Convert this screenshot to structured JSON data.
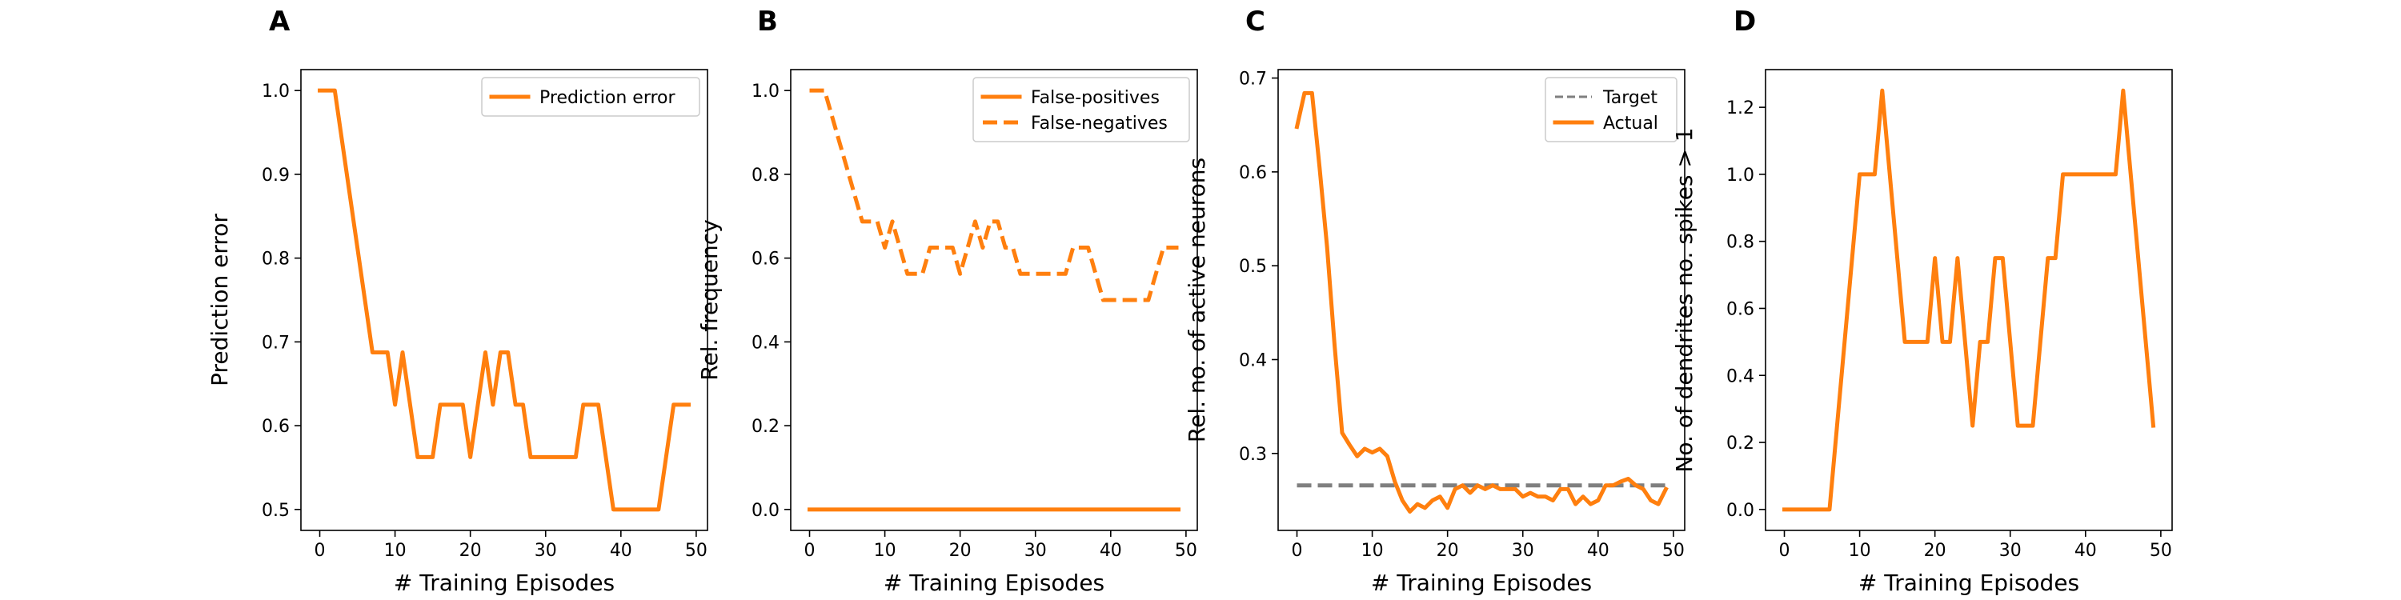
{
  "colors": {
    "series_orange": "#ff7f0e",
    "target_gray": "#7f7f7f",
    "axes": "#000000",
    "background": "#ffffff"
  },
  "chart_data": [
    {
      "panel": "A",
      "type": "line",
      "title": "",
      "xlabel": "# Training Episodes",
      "ylabel": "Prediction error",
      "xlim": [
        -2.5,
        51.5
      ],
      "ylim": [
        0.475,
        1.025
      ],
      "xticks": [
        0,
        10,
        20,
        30,
        40,
        50
      ],
      "xtick_labels": [
        "0",
        "10",
        "20",
        "30",
        "40",
        "50"
      ],
      "yticks": [
        0.5,
        0.6,
        0.7,
        0.8,
        0.9,
        1.0
      ],
      "ytick_labels": [
        "0.5",
        "0.6",
        "0.7",
        "0.8",
        "0.9",
        "1.0"
      ],
      "legend": {
        "position": "top-right"
      },
      "grid": false,
      "series": [
        {
          "name": "Prediction error",
          "style": "solid",
          "color": "#ff7f0e",
          "x": [
            0,
            1,
            2,
            3,
            4,
            5,
            6,
            7,
            8,
            9,
            10,
            11,
            12,
            13,
            14,
            15,
            16,
            17,
            18,
            19,
            20,
            21,
            22,
            23,
            24,
            25,
            26,
            27,
            28,
            29,
            30,
            31,
            32,
            33,
            34,
            35,
            36,
            37,
            38,
            39,
            40,
            41,
            42,
            43,
            44,
            45,
            46,
            47,
            48,
            49
          ],
          "values": [
            1.0,
            1.0,
            1.0,
            0.9375,
            0.875,
            0.8125,
            0.75,
            0.6875,
            0.6875,
            0.6875,
            0.625,
            0.6875,
            0.625,
            0.5625,
            0.5625,
            0.5625,
            0.625,
            0.625,
            0.625,
            0.625,
            0.5625,
            0.625,
            0.6875,
            0.625,
            0.6875,
            0.6875,
            0.625,
            0.625,
            0.5625,
            0.5625,
            0.5625,
            0.5625,
            0.5625,
            0.5625,
            0.5625,
            0.625,
            0.625,
            0.625,
            0.5625,
            0.5,
            0.5,
            0.5,
            0.5,
            0.5,
            0.5,
            0.5,
            0.5625,
            0.625,
            0.625,
            0.625
          ]
        }
      ]
    },
    {
      "panel": "B",
      "type": "line",
      "title": "",
      "xlabel": "# Training Episodes",
      "ylabel": "Rel. frequency",
      "xlim": [
        -2.5,
        51.5
      ],
      "ylim": [
        -0.05,
        1.05
      ],
      "xticks": [
        0,
        10,
        20,
        30,
        40,
        50
      ],
      "xtick_labels": [
        "0",
        "10",
        "20",
        "30",
        "40",
        "50"
      ],
      "yticks": [
        0.0,
        0.2,
        0.4,
        0.6,
        0.8,
        1.0
      ],
      "ytick_labels": [
        "0.0",
        "0.2",
        "0.4",
        "0.6",
        "0.8",
        "1.0"
      ],
      "legend": {
        "position": "top-right"
      },
      "grid": false,
      "series": [
        {
          "name": "False-positives",
          "style": "solid",
          "color": "#ff7f0e",
          "x": [
            0,
            1,
            2,
            3,
            4,
            5,
            6,
            7,
            8,
            9,
            10,
            11,
            12,
            13,
            14,
            15,
            16,
            17,
            18,
            19,
            20,
            21,
            22,
            23,
            24,
            25,
            26,
            27,
            28,
            29,
            30,
            31,
            32,
            33,
            34,
            35,
            36,
            37,
            38,
            39,
            40,
            41,
            42,
            43,
            44,
            45,
            46,
            47,
            48,
            49
          ],
          "values": [
            0,
            0,
            0,
            0,
            0,
            0,
            0,
            0,
            0,
            0,
            0,
            0,
            0,
            0,
            0,
            0,
            0,
            0,
            0,
            0,
            0,
            0,
            0,
            0,
            0,
            0,
            0,
            0,
            0,
            0,
            0,
            0,
            0,
            0,
            0,
            0,
            0,
            0,
            0,
            0,
            0,
            0,
            0,
            0,
            0,
            0,
            0,
            0,
            0,
            0
          ]
        },
        {
          "name": "False-negatives",
          "style": "dashed",
          "color": "#ff7f0e",
          "x": [
            0,
            1,
            2,
            3,
            4,
            5,
            6,
            7,
            8,
            9,
            10,
            11,
            12,
            13,
            14,
            15,
            16,
            17,
            18,
            19,
            20,
            21,
            22,
            23,
            24,
            25,
            26,
            27,
            28,
            29,
            30,
            31,
            32,
            33,
            34,
            35,
            36,
            37,
            38,
            39,
            40,
            41,
            42,
            43,
            44,
            45,
            46,
            47,
            48,
            49
          ],
          "values": [
            1.0,
            1.0,
            1.0,
            0.9375,
            0.875,
            0.8125,
            0.75,
            0.6875,
            0.6875,
            0.6875,
            0.625,
            0.6875,
            0.625,
            0.5625,
            0.5625,
            0.5625,
            0.625,
            0.625,
            0.625,
            0.625,
            0.5625,
            0.625,
            0.6875,
            0.625,
            0.6875,
            0.6875,
            0.625,
            0.625,
            0.5625,
            0.5625,
            0.5625,
            0.5625,
            0.5625,
            0.5625,
            0.5625,
            0.625,
            0.625,
            0.625,
            0.5625,
            0.5,
            0.5,
            0.5,
            0.5,
            0.5,
            0.5,
            0.5,
            0.5625,
            0.625,
            0.625,
            0.625
          ]
        }
      ]
    },
    {
      "panel": "C",
      "type": "line",
      "title": "",
      "xlabel": "# Training Episodes",
      "ylabel": "Rel. no. of active neurons",
      "xlim": [
        -2.5,
        51.5
      ],
      "ylim": [
        0.218,
        0.709
      ],
      "xticks": [
        0,
        10,
        20,
        30,
        40,
        50
      ],
      "xtick_labels": [
        "0",
        "10",
        "20",
        "30",
        "40",
        "50"
      ],
      "yticks": [
        0.3,
        0.4,
        0.5,
        0.6,
        0.7
      ],
      "ytick_labels": [
        "0.3",
        "0.4",
        "0.5",
        "0.6",
        "0.7"
      ],
      "legend": {
        "position": "top-right"
      },
      "grid": false,
      "series": [
        {
          "name": "Target",
          "style": "dashed",
          "color": "#7f7f7f",
          "x": [
            0,
            49
          ],
          "values": [
            0.266,
            0.266
          ]
        },
        {
          "name": "Actual",
          "style": "solid",
          "color": "#ff7f0e",
          "x": [
            0,
            1,
            2,
            3,
            4,
            5,
            6,
            7,
            8,
            9,
            10,
            11,
            12,
            13,
            14,
            15,
            16,
            17,
            18,
            19,
            20,
            21,
            22,
            23,
            24,
            25,
            26,
            27,
            28,
            29,
            30,
            31,
            32,
            33,
            34,
            35,
            36,
            37,
            38,
            39,
            40,
            41,
            42,
            43,
            44,
            45,
            46,
            47,
            48,
            49
          ],
          "values": [
            0.648,
            0.684,
            0.684,
            0.605,
            0.52,
            0.415,
            0.322,
            0.309,
            0.297,
            0.305,
            0.301,
            0.305,
            0.297,
            0.27,
            0.25,
            0.238,
            0.246,
            0.242,
            0.25,
            0.254,
            0.242,
            0.262,
            0.266,
            0.258,
            0.266,
            0.262,
            0.266,
            0.262,
            0.262,
            0.262,
            0.254,
            0.258,
            0.254,
            0.254,
            0.25,
            0.262,
            0.262,
            0.246,
            0.254,
            0.246,
            0.25,
            0.266,
            0.266,
            0.27,
            0.273,
            0.266,
            0.262,
            0.25,
            0.246,
            0.262
          ]
        }
      ]
    },
    {
      "panel": "D",
      "type": "line",
      "title": "",
      "xlabel": "# Training Episodes",
      "ylabel": "No. of dendrites no. spikes > 1",
      "xlim": [
        -2.5,
        51.5
      ],
      "ylim": [
        -0.0625,
        1.3125
      ],
      "xticks": [
        0,
        10,
        20,
        30,
        40,
        50
      ],
      "xtick_labels": [
        "0",
        "10",
        "20",
        "30",
        "40",
        "50"
      ],
      "yticks": [
        0.0,
        0.2,
        0.4,
        0.6,
        0.8,
        1.0,
        1.2
      ],
      "ytick_labels": [
        "0.0",
        "0.2",
        "0.4",
        "0.6",
        "0.8",
        "1.0",
        "1.2"
      ],
      "legend": null,
      "grid": false,
      "series": [
        {
          "name": "",
          "style": "solid",
          "color": "#ff7f0e",
          "x": [
            0,
            1,
            2,
            3,
            4,
            5,
            6,
            7,
            8,
            9,
            10,
            11,
            12,
            13,
            14,
            15,
            16,
            17,
            18,
            19,
            20,
            21,
            22,
            23,
            24,
            25,
            26,
            27,
            28,
            29,
            30,
            31,
            32,
            33,
            34,
            35,
            36,
            37,
            38,
            39,
            40,
            41,
            42,
            43,
            44,
            45,
            46,
            47,
            48,
            49
          ],
          "values": [
            0,
            0,
            0,
            0,
            0,
            0,
            0,
            0.25,
            0.5,
            0.75,
            1.0,
            1.0,
            1.0,
            1.25,
            1.0,
            0.75,
            0.5,
            0.5,
            0.5,
            0.5,
            0.75,
            0.5,
            0.5,
            0.75,
            0.5,
            0.25,
            0.5,
            0.5,
            0.75,
            0.75,
            0.5,
            0.25,
            0.25,
            0.25,
            0.5,
            0.75,
            0.75,
            1.0,
            1.0,
            1.0,
            1.0,
            1.0,
            1.0,
            1.0,
            1.0,
            1.25,
            1.0,
            0.75,
            0.5,
            0.25
          ]
        }
      ]
    }
  ]
}
